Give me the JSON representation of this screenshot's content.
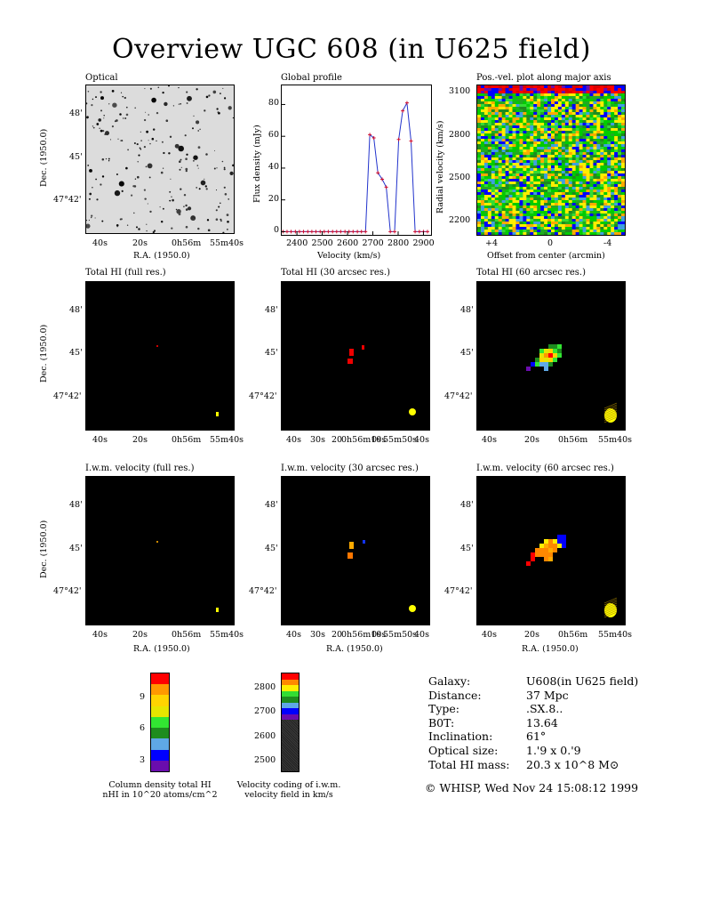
{
  "title": "Overview UGC 608 (in U625 field)",
  "panels": {
    "optical": {
      "title": "Optical"
    },
    "global_profile": {
      "title": "Global profile"
    },
    "pv": {
      "title": "Pos.-vel. plot along major axis"
    },
    "hi_full": {
      "title": "Total HI (full res.)"
    },
    "hi_30": {
      "title": "Total HI (30 arcsec res.)"
    },
    "hi_60": {
      "title": "Total HI (60 arcsec res.)"
    },
    "vel_full": {
      "title": "I.w.m. velocity (full res.)"
    },
    "vel_30": {
      "title": "I.w.m. velocity (30 arcsec res.)"
    },
    "vel_60": {
      "title": "I.w.m. velocity (60 arcsec res.)"
    }
  },
  "axes": {
    "dec_label": "Dec. (1950.0)",
    "ra_label": "R.A. (1950.0)",
    "dec_ticks": [
      "48'",
      "45'",
      "47°42'"
    ],
    "ra_ticks_a": [
      "40s",
      "20s",
      "0h56m",
      "55m40s"
    ],
    "ra_ticks_b": [
      "40s",
      "30s",
      "20",
      "0h56m10s",
      "0s",
      "55m50s",
      "40s"
    ],
    "flux_label": "Flux density (mJy)",
    "vel_label": "Velocity (km/s)",
    "radvel_label": "Radial velocity (km/s)",
    "offset_label": "Offset from center (arcmin)",
    "pv_yticks": [
      "3100",
      "2800",
      "2500",
      "2200"
    ],
    "pv_xticks": [
      "+4",
      "0",
      "-4"
    ]
  },
  "chart_data": {
    "type": "line",
    "title": "Global profile",
    "xlabel": "Velocity (km/s)",
    "ylabel": "Flux density (mJy)",
    "xlim": [
      2340,
      2930
    ],
    "ylim": [
      -2,
      92
    ],
    "xticks": [
      2400,
      2500,
      2600,
      2700,
      2800,
      2900
    ],
    "yticks": [
      0,
      20,
      40,
      60,
      80
    ],
    "x": [
      2345,
      2361,
      2377,
      2394,
      2410,
      2426,
      2443,
      2459,
      2475,
      2492,
      2508,
      2524,
      2541,
      2557,
      2573,
      2590,
      2606,
      2622,
      2639,
      2655,
      2671,
      2688,
      2704,
      2720,
      2737,
      2753,
      2769,
      2786,
      2802,
      2818,
      2835,
      2851,
      2867,
      2884,
      2900,
      2916
    ],
    "values": [
      0,
      0,
      0,
      0,
      0,
      0,
      0,
      0,
      0,
      0,
      0,
      0,
      0,
      0,
      0,
      0,
      0,
      0,
      0,
      0,
      0,
      61,
      59,
      37,
      33,
      28,
      0,
      0,
      58,
      76,
      81,
      57,
      0,
      0,
      0,
      0
    ]
  },
  "colorbars": {
    "column_density": {
      "ticks": [
        "9",
        "6",
        "3"
      ],
      "caption_line1": "Column density total HI",
      "caption_line2": "nHI in 10^20 atoms/cm^2",
      "colors": [
        "#6a0dad",
        "#0000ff",
        "#5fa8e6",
        "#1e8c1e",
        "#32e632",
        "#e6e600",
        "#ffd400",
        "#ff9900",
        "#ff0000"
      ]
    },
    "velocity": {
      "ticks": [
        "2800",
        "2700",
        "2600",
        "2500"
      ],
      "caption_line1": "Velocity coding of i.w.m.",
      "caption_line2": "velocity field in km/s",
      "colors": [
        "#ff0000",
        "#ff8800",
        "#ffee00",
        "#33dd33",
        "#1e8c1e",
        "#5fa8e6",
        "#0000ff",
        "#6a0dad"
      ]
    }
  },
  "info": {
    "rows": [
      {
        "label": "Galaxy:",
        "value": "U608(in U625 field)"
      },
      {
        "label": "Distance:",
        "value": "37 Mpc"
      },
      {
        "label": "Type:",
        "value": ".SX.8.."
      },
      {
        "label": "B0T:",
        "value": "13.64"
      },
      {
        "label": "Inclination:",
        "value": "61°"
      },
      {
        "label": "Optical size:",
        "value": "1.'9 x 0.'9"
      },
      {
        "label": "Total HI mass:",
        "value": "20.3 x 10^8 M⊙"
      }
    ],
    "footer": "© WHISP, Wed Nov 24 15:08:12 1999"
  }
}
